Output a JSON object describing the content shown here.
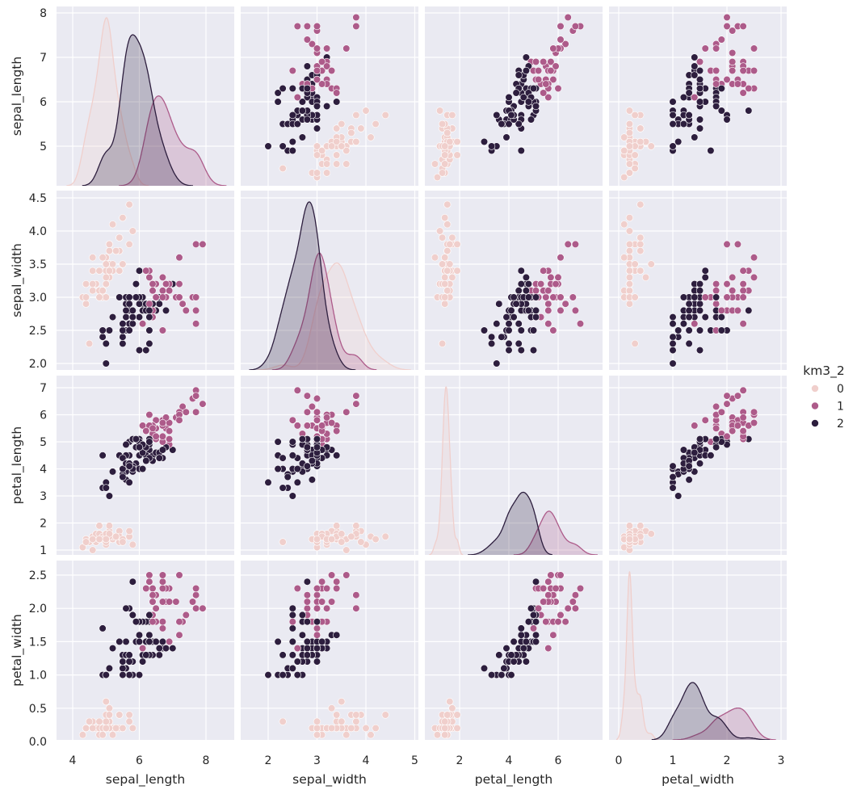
{
  "chart_data": {
    "type": "scatter",
    "subtype": "pairplot",
    "variables": [
      "sepal_length",
      "sepal_width",
      "petal_length",
      "petal_width"
    ],
    "diagonal": "kde",
    "hue": "km3_2",
    "grid": true,
    "legend": {
      "title": "km3_2",
      "placement": "right",
      "entries": [
        {
          "label": "0",
          "color": "#f0cfcc"
        },
        {
          "label": "1",
          "color": "#ad5b8a"
        },
        {
          "label": "2",
          "color": "#2d1e3e"
        }
      ]
    },
    "x_ticks": {
      "sepal_length": [
        "4",
        "6",
        "8"
      ],
      "sepal_width": [
        "2",
        "3",
        "4",
        "5"
      ],
      "petal_length": [
        "2",
        "4",
        "6"
      ],
      "petal_width": [
        "0",
        "1",
        "2",
        "3"
      ]
    },
    "y_ticks": {
      "sepal_length": [
        "5",
        "6",
        "7",
        "8"
      ],
      "sepal_width": [
        "2.0",
        "2.5",
        "3.0",
        "3.5",
        "4.0",
        "4.5"
      ],
      "petal_length": [
        "1",
        "2",
        "3",
        "4",
        "5",
        "6",
        "7"
      ],
      "petal_width": [
        "0.0",
        "0.5",
        "1.0",
        "1.5",
        "2.0",
        "2.5"
      ]
    },
    "columns": [
      "sepal_length",
      "sepal_width",
      "petal_length",
      "petal_width",
      "km3_2"
    ],
    "rows": [
      [
        5.1,
        3.5,
        1.4,
        0.2,
        0
      ],
      [
        4.9,
        3.0,
        1.4,
        0.2,
        0
      ],
      [
        4.7,
        3.2,
        1.3,
        0.2,
        0
      ],
      [
        4.6,
        3.1,
        1.5,
        0.2,
        0
      ],
      [
        5.0,
        3.6,
        1.4,
        0.2,
        0
      ],
      [
        5.4,
        3.9,
        1.7,
        0.4,
        0
      ],
      [
        4.6,
        3.4,
        1.4,
        0.3,
        0
      ],
      [
        5.0,
        3.4,
        1.5,
        0.2,
        0
      ],
      [
        4.4,
        2.9,
        1.4,
        0.2,
        0
      ],
      [
        4.9,
        3.1,
        1.5,
        0.1,
        0
      ],
      [
        5.4,
        3.7,
        1.5,
        0.2,
        0
      ],
      [
        4.8,
        3.4,
        1.6,
        0.2,
        0
      ],
      [
        4.8,
        3.0,
        1.4,
        0.1,
        0
      ],
      [
        4.3,
        3.0,
        1.1,
        0.1,
        0
      ],
      [
        5.8,
        4.0,
        1.2,
        0.2,
        0
      ],
      [
        5.7,
        4.4,
        1.5,
        0.4,
        0
      ],
      [
        5.4,
        3.9,
        1.3,
        0.4,
        0
      ],
      [
        5.1,
        3.5,
        1.4,
        0.3,
        0
      ],
      [
        5.7,
        3.8,
        1.7,
        0.3,
        0
      ],
      [
        5.1,
        3.8,
        1.5,
        0.3,
        0
      ],
      [
        5.4,
        3.4,
        1.7,
        0.2,
        0
      ],
      [
        5.1,
        3.7,
        1.5,
        0.4,
        0
      ],
      [
        4.6,
        3.6,
        1.0,
        0.2,
        0
      ],
      [
        5.1,
        3.3,
        1.7,
        0.5,
        0
      ],
      [
        4.8,
        3.4,
        1.9,
        0.2,
        0
      ],
      [
        5.0,
        3.0,
        1.6,
        0.2,
        0
      ],
      [
        5.0,
        3.4,
        1.6,
        0.4,
        0
      ],
      [
        5.2,
        3.5,
        1.5,
        0.2,
        0
      ],
      [
        5.2,
        3.4,
        1.4,
        0.2,
        0
      ],
      [
        4.7,
        3.2,
        1.6,
        0.2,
        0
      ],
      [
        4.8,
        3.1,
        1.6,
        0.2,
        0
      ],
      [
        5.4,
        3.4,
        1.5,
        0.4,
        0
      ],
      [
        5.2,
        4.1,
        1.5,
        0.1,
        0
      ],
      [
        5.5,
        4.2,
        1.4,
        0.2,
        0
      ],
      [
        4.9,
        3.1,
        1.5,
        0.2,
        0
      ],
      [
        5.0,
        3.2,
        1.2,
        0.2,
        0
      ],
      [
        5.5,
        3.5,
        1.3,
        0.2,
        0
      ],
      [
        4.9,
        3.6,
        1.4,
        0.1,
        0
      ],
      [
        4.4,
        3.0,
        1.3,
        0.2,
        0
      ],
      [
        5.1,
        3.4,
        1.5,
        0.2,
        0
      ],
      [
        5.0,
        3.5,
        1.3,
        0.3,
        0
      ],
      [
        4.5,
        2.3,
        1.3,
        0.3,
        0
      ],
      [
        4.4,
        3.2,
        1.3,
        0.2,
        0
      ],
      [
        5.0,
        3.5,
        1.6,
        0.6,
        0
      ],
      [
        5.1,
        3.8,
        1.9,
        0.4,
        0
      ],
      [
        4.8,
        3.0,
        1.4,
        0.3,
        0
      ],
      [
        5.1,
        3.8,
        1.6,
        0.2,
        0
      ],
      [
        4.6,
        3.2,
        1.4,
        0.2,
        0
      ],
      [
        5.3,
        3.7,
        1.5,
        0.2,
        0
      ],
      [
        5.0,
        3.3,
        1.4,
        0.2,
        0
      ],
      [
        7.0,
        3.2,
        4.7,
        1.4,
        2
      ],
      [
        6.4,
        3.2,
        4.5,
        1.5,
        2
      ],
      [
        6.9,
        3.1,
        4.9,
        1.5,
        1
      ],
      [
        5.5,
        2.3,
        4.0,
        1.3,
        2
      ],
      [
        6.5,
        2.8,
        4.6,
        1.5,
        2
      ],
      [
        5.7,
        2.8,
        4.5,
        1.3,
        2
      ],
      [
        6.3,
        3.3,
        4.7,
        1.6,
        2
      ],
      [
        4.9,
        2.4,
        3.3,
        1.0,
        2
      ],
      [
        6.6,
        2.9,
        4.6,
        1.3,
        2
      ],
      [
        5.2,
        2.7,
        3.9,
        1.4,
        2
      ],
      [
        5.0,
        2.0,
        3.5,
        1.0,
        2
      ],
      [
        5.9,
        3.0,
        4.2,
        1.5,
        2
      ],
      [
        6.0,
        2.2,
        4.0,
        1.0,
        2
      ],
      [
        6.1,
        2.9,
        4.7,
        1.4,
        2
      ],
      [
        5.6,
        2.9,
        3.6,
        1.3,
        2
      ],
      [
        6.7,
        3.1,
        4.4,
        1.4,
        2
      ],
      [
        5.6,
        3.0,
        4.5,
        1.5,
        2
      ],
      [
        5.8,
        2.7,
        4.1,
        1.0,
        2
      ],
      [
        6.2,
        2.2,
        4.5,
        1.5,
        2
      ],
      [
        5.6,
        2.5,
        3.9,
        1.1,
        2
      ],
      [
        5.9,
        3.2,
        4.8,
        1.8,
        2
      ],
      [
        6.1,
        2.8,
        4.0,
        1.3,
        2
      ],
      [
        6.3,
        2.5,
        4.9,
        1.5,
        2
      ],
      [
        6.1,
        2.8,
        4.7,
        1.2,
        2
      ],
      [
        6.4,
        2.9,
        4.3,
        1.3,
        2
      ],
      [
        6.6,
        3.0,
        4.4,
        1.4,
        2
      ],
      [
        6.8,
        2.8,
        4.8,
        1.4,
        2
      ],
      [
        6.7,
        3.0,
        5.0,
        1.7,
        1
      ],
      [
        6.0,
        2.9,
        4.5,
        1.5,
        2
      ],
      [
        5.7,
        2.6,
        3.5,
        1.0,
        2
      ],
      [
        5.5,
        2.4,
        3.8,
        1.1,
        2
      ],
      [
        5.5,
        2.4,
        3.7,
        1.0,
        2
      ],
      [
        5.8,
        2.7,
        3.9,
        1.2,
        2
      ],
      [
        6.0,
        2.7,
        5.1,
        1.6,
        2
      ],
      [
        5.4,
        3.0,
        4.5,
        1.5,
        2
      ],
      [
        6.0,
        3.4,
        4.5,
        1.6,
        2
      ],
      [
        6.7,
        3.1,
        4.7,
        1.5,
        2
      ],
      [
        6.3,
        2.3,
        4.4,
        1.3,
        2
      ],
      [
        5.6,
        3.0,
        4.1,
        1.3,
        2
      ],
      [
        5.5,
        2.5,
        4.0,
        1.3,
        2
      ],
      [
        5.5,
        2.6,
        4.4,
        1.2,
        2
      ],
      [
        6.1,
        3.0,
        4.6,
        1.4,
        2
      ],
      [
        5.8,
        2.6,
        4.0,
        1.2,
        2
      ],
      [
        5.0,
        2.3,
        3.3,
        1.0,
        2
      ],
      [
        5.6,
        2.7,
        4.2,
        1.3,
        2
      ],
      [
        5.7,
        3.0,
        4.2,
        1.2,
        2
      ],
      [
        5.7,
        2.9,
        4.2,
        1.3,
        2
      ],
      [
        6.2,
        2.9,
        4.3,
        1.3,
        2
      ],
      [
        5.1,
        2.5,
        3.0,
        1.1,
        2
      ],
      [
        5.7,
        2.8,
        4.1,
        1.3,
        2
      ],
      [
        6.3,
        3.3,
        6.0,
        2.5,
        1
      ],
      [
        5.8,
        2.7,
        5.1,
        1.9,
        2
      ],
      [
        7.1,
        3.0,
        5.9,
        2.1,
        1
      ],
      [
        6.3,
        2.9,
        5.6,
        1.8,
        1
      ],
      [
        6.5,
        3.0,
        5.8,
        2.2,
        1
      ],
      [
        7.6,
        3.0,
        6.6,
        2.1,
        1
      ],
      [
        4.9,
        2.5,
        4.5,
        1.7,
        2
      ],
      [
        7.3,
        2.9,
        6.3,
        1.8,
        1
      ],
      [
        6.7,
        2.5,
        5.8,
        1.8,
        1
      ],
      [
        7.2,
        3.6,
        6.1,
        2.5,
        1
      ],
      [
        6.5,
        3.2,
        5.1,
        2.0,
        1
      ],
      [
        6.4,
        2.7,
        5.3,
        1.9,
        1
      ],
      [
        6.8,
        3.0,
        5.5,
        2.1,
        1
      ],
      [
        5.7,
        2.5,
        5.0,
        2.0,
        2
      ],
      [
        5.8,
        2.8,
        5.1,
        2.4,
        2
      ],
      [
        6.4,
        3.2,
        5.3,
        2.3,
        1
      ],
      [
        6.5,
        3.0,
        5.5,
        1.8,
        1
      ],
      [
        7.7,
        3.8,
        6.7,
        2.2,
        1
      ],
      [
        7.7,
        2.6,
        6.9,
        2.3,
        1
      ],
      [
        6.0,
        2.2,
        5.0,
        1.5,
        2
      ],
      [
        6.9,
        3.2,
        5.7,
        2.3,
        1
      ],
      [
        5.6,
        2.8,
        4.9,
        2.0,
        2
      ],
      [
        7.7,
        2.8,
        6.7,
        2.0,
        1
      ],
      [
        6.3,
        2.7,
        4.9,
        1.8,
        2
      ],
      [
        6.7,
        3.3,
        5.7,
        2.1,
        1
      ],
      [
        7.2,
        3.2,
        6.0,
        1.8,
        1
      ],
      [
        6.2,
        2.8,
        4.8,
        1.8,
        2
      ],
      [
        6.1,
        3.0,
        4.9,
        1.8,
        2
      ],
      [
        6.4,
        2.8,
        5.6,
        2.1,
        1
      ],
      [
        7.2,
        3.0,
        5.8,
        1.6,
        1
      ],
      [
        7.4,
        2.8,
        6.1,
        1.9,
        1
      ],
      [
        7.9,
        3.8,
        6.4,
        2.0,
        1
      ],
      [
        6.4,
        2.8,
        5.6,
        2.2,
        1
      ],
      [
        6.3,
        2.8,
        5.1,
        1.5,
        2
      ],
      [
        6.1,
        2.6,
        5.6,
        1.4,
        1
      ],
      [
        7.7,
        3.0,
        6.1,
        2.3,
        1
      ],
      [
        6.3,
        3.4,
        5.6,
        2.4,
        1
      ],
      [
        6.4,
        3.1,
        5.5,
        1.8,
        1
      ],
      [
        6.0,
        3.0,
        4.8,
        1.8,
        2
      ],
      [
        6.9,
        3.1,
        5.4,
        2.1,
        1
      ],
      [
        6.7,
        3.1,
        5.6,
        2.4,
        1
      ],
      [
        6.9,
        3.1,
        5.1,
        2.3,
        1
      ],
      [
        5.8,
        2.7,
        5.1,
        1.9,
        2
      ],
      [
        6.8,
        3.2,
        5.9,
        2.3,
        1
      ],
      [
        6.7,
        3.3,
        5.7,
        2.5,
        1
      ],
      [
        6.7,
        3.0,
        5.2,
        2.3,
        1
      ],
      [
        6.3,
        2.5,
        5.0,
        1.9,
        2
      ],
      [
        6.5,
        3.0,
        5.2,
        2.0,
        1
      ],
      [
        6.2,
        3.4,
        5.4,
        2.3,
        1
      ],
      [
        5.9,
        3.0,
        5.1,
        1.8,
        2
      ]
    ]
  }
}
